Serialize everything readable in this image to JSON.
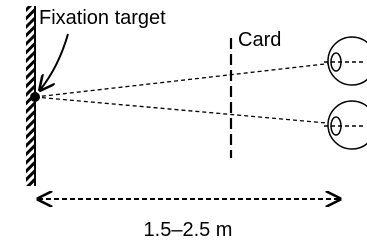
{
  "labels": {
    "target": "Fixation target",
    "card": "Card",
    "distance": "1.5–2.5 m"
  }
}
